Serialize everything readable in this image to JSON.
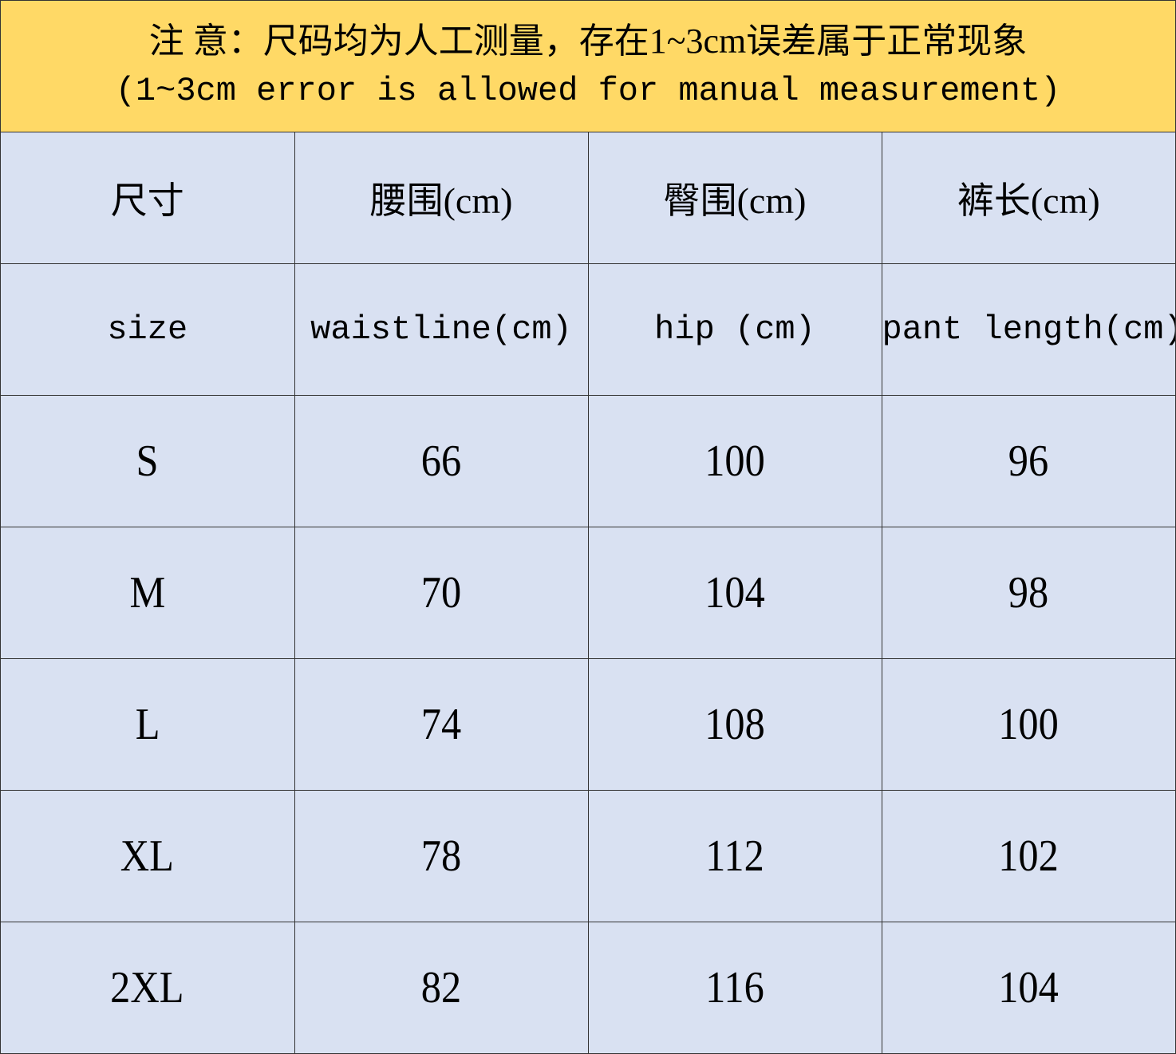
{
  "note": {
    "zh": "注 意：尺码均为人工测量，存在1~3cm误差属于正常现象",
    "en": "(1~3cm error is allowed for manual measurement)"
  },
  "colors": {
    "note_bg": "#FFD966",
    "table_bg": "#D9E1F2"
  },
  "headers_zh": [
    "尺寸",
    "腰围(cm)",
    "臀围(cm)",
    "裤长(cm)"
  ],
  "headers_en": [
    "size",
    "waistline(cm)",
    "hip (cm)",
    "pant length(cm)"
  ],
  "rows": [
    [
      "S",
      "66",
      "100",
      "96"
    ],
    [
      "M",
      "70",
      "104",
      "98"
    ],
    [
      "L",
      "74",
      "108",
      "100"
    ],
    [
      "XL",
      "78",
      "112",
      "102"
    ],
    [
      "2XL",
      "82",
      "116",
      "104"
    ]
  ]
}
